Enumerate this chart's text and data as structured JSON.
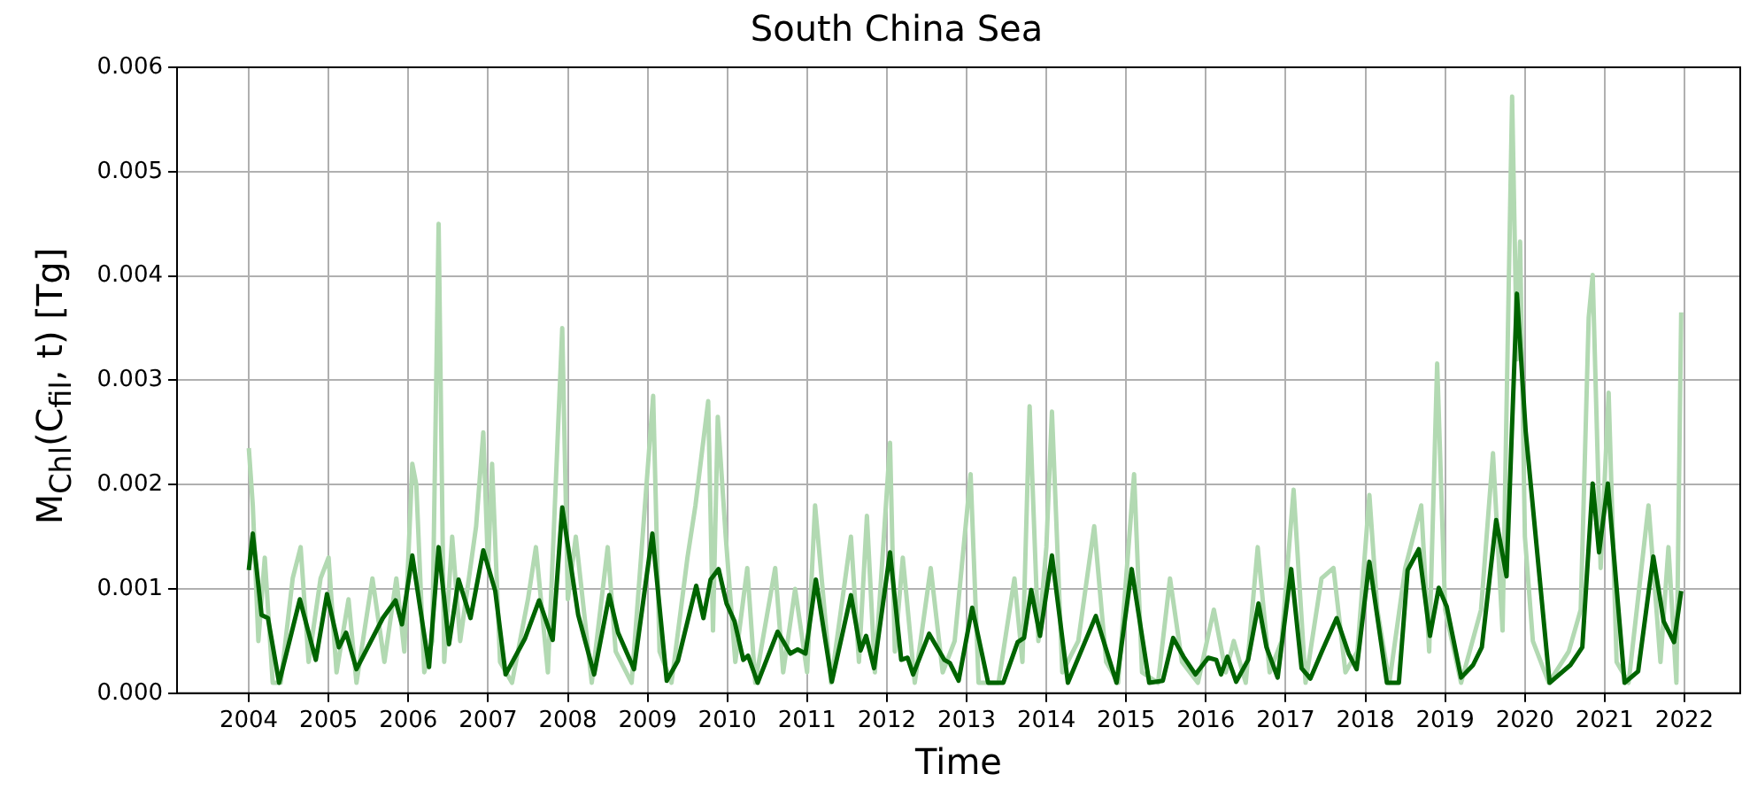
{
  "chart_data": {
    "type": "line",
    "title": "South China Sea",
    "xlabel": "Time",
    "ylabel": "M$_{Chl}$(C$_{fil}$, t) [Tg]",
    "xlim": [
      2003.1,
      2022.7
    ],
    "xticks": [
      2004,
      2005,
      2006,
      2007,
      2008,
      2009,
      2010,
      2011,
      2012,
      2013,
      2014,
      2015,
      2016,
      2017,
      2018,
      2019,
      2020,
      2021,
      2022
    ],
    "ylim": [
      0,
      0.006
    ],
    "yticks": [
      {
        "value": 0,
        "label": "0.000"
      },
      {
        "value": 0.001,
        "label": "0.001"
      },
      {
        "value": 0.002,
        "label": "0.002"
      },
      {
        "value": 0.003,
        "label": "0.003"
      },
      {
        "value": 0.004,
        "label": "0.004"
      },
      {
        "value": 0.005,
        "label": "0.005"
      },
      {
        "value": 0.006,
        "label": "0.006"
      }
    ],
    "grid": true,
    "legend": false,
    "marker": "none",
    "line_style": "solid",
    "series": [
      {
        "color": "#b2d9b2",
        "x": [
          2004.0,
          2004.05,
          2004.12,
          2004.2,
          2004.3,
          2004.4,
          2004.55,
          2004.65,
          2004.75,
          2004.9,
          2005.0,
          2005.1,
          2005.25,
          2005.35,
          2005.55,
          2005.7,
          2005.85,
          2005.95,
          2006.05,
          2006.1,
          2006.2,
          2006.3,
          2006.38,
          2006.45,
          2006.55,
          2006.65,
          2006.85,
          2006.94,
          2007.0,
          2007.05,
          2007.15,
          2007.3,
          2007.5,
          2007.6,
          2007.75,
          2007.93,
          2008.0,
          2008.1,
          2008.3,
          2008.5,
          2008.6,
          2008.8,
          2009.07,
          2009.15,
          2009.3,
          2009.5,
          2009.6,
          2009.76,
          2009.82,
          2009.88,
          2009.98,
          2010.1,
          2010.25,
          2010.35,
          2010.6,
          2010.7,
          2010.85,
          2011.0,
          2011.1,
          2011.3,
          2011.55,
          2011.65,
          2011.75,
          2011.85,
          2012.04,
          2012.1,
          2012.2,
          2012.35,
          2012.55,
          2012.7,
          2012.85,
          2013.05,
          2013.15,
          2013.4,
          2013.6,
          2013.7,
          2013.79,
          2013.9,
          2014.0,
          2014.07,
          2014.2,
          2014.4,
          2014.6,
          2014.75,
          2014.9,
          2015.1,
          2015.2,
          2015.4,
          2015.55,
          2015.7,
          2015.9,
          2016.1,
          2016.25,
          2016.35,
          2016.5,
          2016.65,
          2016.8,
          2016.95,
          2017.1,
          2017.25,
          2017.45,
          2017.6,
          2017.75,
          2017.9,
          2018.05,
          2018.15,
          2018.3,
          2018.5,
          2018.7,
          2018.8,
          2018.9,
          2019.0,
          2019.2,
          2019.45,
          2019.6,
          2019.72,
          2019.84,
          2019.9,
          2019.94,
          2020.0,
          2020.1,
          2020.3,
          2020.55,
          2020.7,
          2020.8,
          2020.85,
          2020.95,
          2021.05,
          2021.15,
          2021.3,
          2021.55,
          2021.7,
          2021.8,
          2021.9,
          2021.96
        ],
        "values": [
          0.00235,
          0.0018,
          0.0005,
          0.0013,
          0.0001,
          0.0001,
          0.0011,
          0.0014,
          0.0003,
          0.0011,
          0.0013,
          0.0002,
          0.0009,
          0.0001,
          0.0011,
          0.0003,
          0.0011,
          0.0004,
          0.0022,
          0.002,
          0.0002,
          0.0005,
          0.0045,
          0.0003,
          0.0015,
          0.0005,
          0.0016,
          0.0025,
          0.0012,
          0.0022,
          0.0003,
          0.0001,
          0.0009,
          0.0014,
          0.0002,
          0.0035,
          0.0009,
          0.0015,
          0.0001,
          0.0014,
          0.0004,
          0.0001,
          0.00285,
          0.0004,
          0.0001,
          0.0013,
          0.0018,
          0.0028,
          0.0006,
          0.00265,
          0.0015,
          0.0003,
          0.0012,
          0.0001,
          0.0012,
          0.0002,
          0.001,
          0.0002,
          0.0018,
          0.0001,
          0.0015,
          0.0003,
          0.0017,
          0.0002,
          0.0024,
          0.0004,
          0.0013,
          0.0001,
          0.0012,
          0.0002,
          0.0005,
          0.0021,
          0.0001,
          0.0001,
          0.0011,
          0.0003,
          0.00275,
          0.0005,
          0.0014,
          0.0027,
          0.0002,
          0.0005,
          0.0016,
          0.0003,
          0.0001,
          0.0021,
          0.0002,
          0.0001,
          0.0011,
          0.0003,
          0.0001,
          0.0008,
          0.0002,
          0.0005,
          0.0001,
          0.0014,
          0.0002,
          0.0005,
          0.00195,
          0.0001,
          0.0011,
          0.0012,
          0.0002,
          0.0004,
          0.0019,
          0.0008,
          0.0001,
          0.0012,
          0.0018,
          0.0004,
          0.00316,
          0.0008,
          0.0001,
          0.0008,
          0.0023,
          0.0006,
          0.00572,
          0.0032,
          0.00433,
          0.0015,
          0.0005,
          0.0001,
          0.0004,
          0.0008,
          0.0036,
          0.00401,
          0.0012,
          0.00288,
          0.0003,
          0.0001,
          0.0018,
          0.0003,
          0.0014,
          0.0001,
          0.00365
        ]
      },
      {
        "color": "#006400",
        "x": [
          2004.0,
          2004.05,
          2004.16,
          2004.24,
          2004.38,
          2004.64,
          2004.84,
          2004.98,
          2005.13,
          2005.22,
          2005.35,
          2005.68,
          2005.84,
          2005.92,
          2006.05,
          2006.26,
          2006.38,
          2006.51,
          2006.63,
          2006.78,
          2006.94,
          2007.09,
          2007.22,
          2007.46,
          2007.64,
          2007.81,
          2007.93,
          2008.13,
          2008.33,
          2008.52,
          2008.63,
          2008.83,
          2009.06,
          2009.24,
          2009.38,
          2009.61,
          2009.7,
          2009.79,
          2009.89,
          2009.99,
          2010.09,
          2010.2,
          2010.26,
          2010.38,
          2010.63,
          2010.79,
          2010.88,
          2010.98,
          2011.11,
          2011.31,
          2011.55,
          2011.67,
          2011.74,
          2011.84,
          2012.04,
          2012.18,
          2012.26,
          2012.33,
          2012.53,
          2012.72,
          2012.79,
          2012.9,
          2013.07,
          2013.27,
          2013.46,
          2013.64,
          2013.72,
          2013.81,
          2013.92,
          2014.07,
          2014.27,
          2014.62,
          2014.88,
          2015.07,
          2015.29,
          2015.46,
          2015.59,
          2015.72,
          2015.87,
          2016.03,
          2016.13,
          2016.19,
          2016.27,
          2016.38,
          2016.53,
          2016.66,
          2016.76,
          2016.9,
          2017.07,
          2017.2,
          2017.31,
          2017.46,
          2017.64,
          2017.79,
          2017.89,
          2018.05,
          2018.27,
          2018.42,
          2018.53,
          2018.67,
          2018.81,
          2018.92,
          2019.02,
          2019.2,
          2019.35,
          2019.46,
          2019.64,
          2019.77,
          2019.9,
          2020.01,
          2020.31,
          2020.57,
          2020.72,
          2020.85,
          2020.93,
          2021.04,
          2021.25,
          2021.42,
          2021.61,
          2021.74,
          2021.87,
          2021.96
        ],
        "values": [
          0.00118,
          0.00153,
          0.00075,
          0.00072,
          0.0001,
          0.0009,
          0.00032,
          0.00095,
          0.00044,
          0.00058,
          0.00023,
          0.00072,
          0.00089,
          0.00066,
          0.00132,
          0.00025,
          0.0014,
          0.00047,
          0.00109,
          0.00072,
          0.00137,
          0.00098,
          0.00018,
          0.00052,
          0.00089,
          0.00051,
          0.00178,
          0.00075,
          0.00018,
          0.00094,
          0.00058,
          0.00023,
          0.00153,
          0.00012,
          0.00031,
          0.00103,
          0.00072,
          0.00109,
          0.00119,
          0.00086,
          0.00069,
          0.00032,
          0.00036,
          0.0001,
          0.00059,
          0.00038,
          0.00042,
          0.00038,
          0.00109,
          0.00011,
          0.00094,
          0.00041,
          0.00055,
          0.00024,
          0.00135,
          0.00032,
          0.00034,
          0.00018,
          0.00057,
          0.00032,
          0.00029,
          0.00012,
          0.00082,
          0.0001,
          0.0001,
          0.00049,
          0.00053,
          0.00099,
          0.00055,
          0.00132,
          0.0001,
          0.00074,
          0.0001,
          0.00119,
          0.0001,
          0.00012,
          0.00053,
          0.00035,
          0.00018,
          0.00034,
          0.00032,
          0.00018,
          0.00035,
          0.00011,
          0.00032,
          0.00086,
          0.00044,
          0.00015,
          0.00119,
          0.00024,
          0.00014,
          0.00041,
          0.00072,
          0.00038,
          0.00023,
          0.00126,
          0.0001,
          0.0001,
          0.00118,
          0.00138,
          0.00055,
          0.00101,
          0.00083,
          0.00015,
          0.00027,
          0.00044,
          0.00166,
          0.00112,
          0.00383,
          0.00251,
          0.0001,
          0.00027,
          0.00044,
          0.00201,
          0.00135,
          0.00201,
          0.0001,
          0.00021,
          0.00131,
          0.00069,
          0.00049,
          0.00098
        ]
      }
    ]
  }
}
